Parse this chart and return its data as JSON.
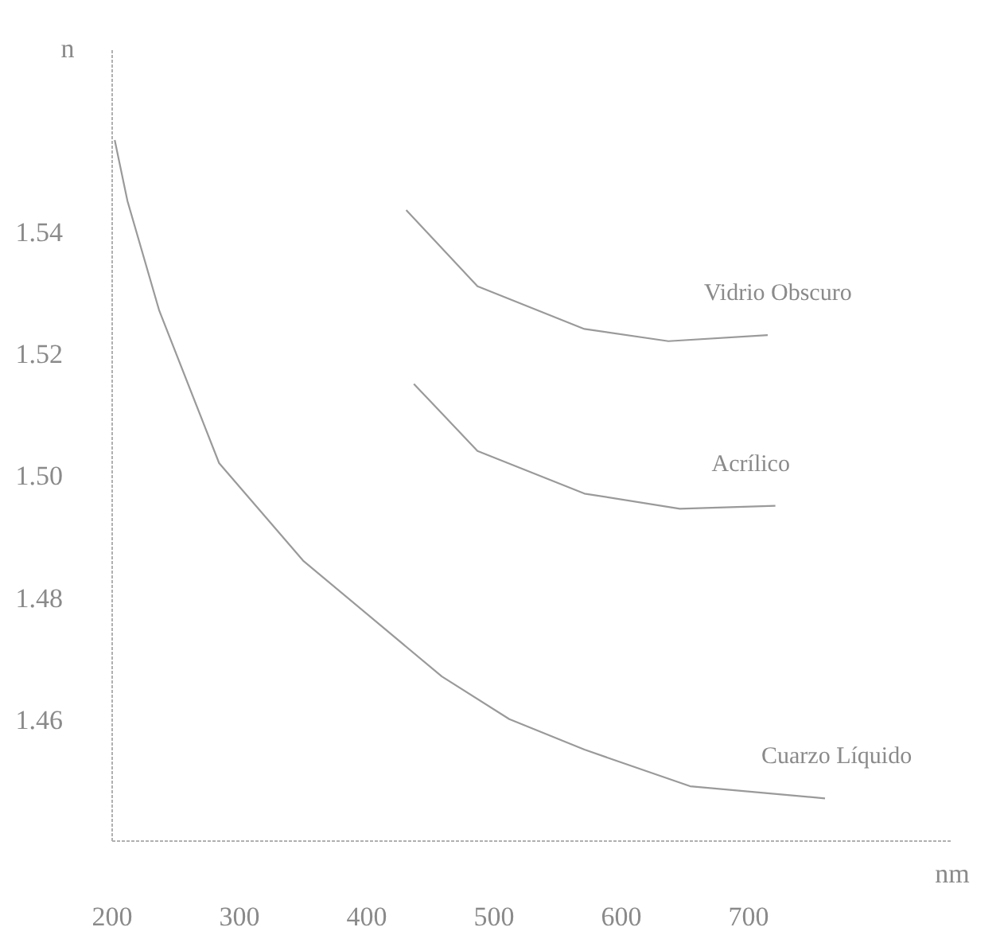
{
  "chart_data": {
    "type": "line",
    "xlabel": "nm",
    "ylabel": "n",
    "xlim": [
      200,
      860
    ],
    "ylim": [
      1.44,
      1.57
    ],
    "xticks": [
      200,
      300,
      400,
      500,
      600,
      700
    ],
    "yticks": [
      1.46,
      1.48,
      {
        "value": 1.5,
        "label": "1.50"
      },
      1.52,
      1.54
    ],
    "grid": false,
    "marker": "none",
    "line_style": "solid",
    "series": [
      {
        "name": "Vidrio Obscuro",
        "color": "#9a9a9a",
        "x": [
          431,
          487,
          571,
          637,
          715
        ],
        "values": [
          1.5435,
          1.531,
          1.524,
          1.522,
          1.523
        ]
      },
      {
        "name": "Acrílico",
        "color": "#9a9a9a",
        "x": [
          437,
          487,
          571,
          646,
          721
        ],
        "values": [
          1.515,
          1.504,
          1.497,
          1.4945,
          1.495
        ]
      },
      {
        "name": "Cuarzo Líquido",
        "color": "#9a9a9a",
        "x": [
          202,
          212,
          237,
          284,
          350,
          459,
          512,
          571,
          654,
          760
        ],
        "values": [
          1.555,
          1.545,
          1.527,
          1.502,
          1.486,
          1.467,
          1.46,
          1.455,
          1.449,
          1.447
        ]
      }
    ]
  }
}
